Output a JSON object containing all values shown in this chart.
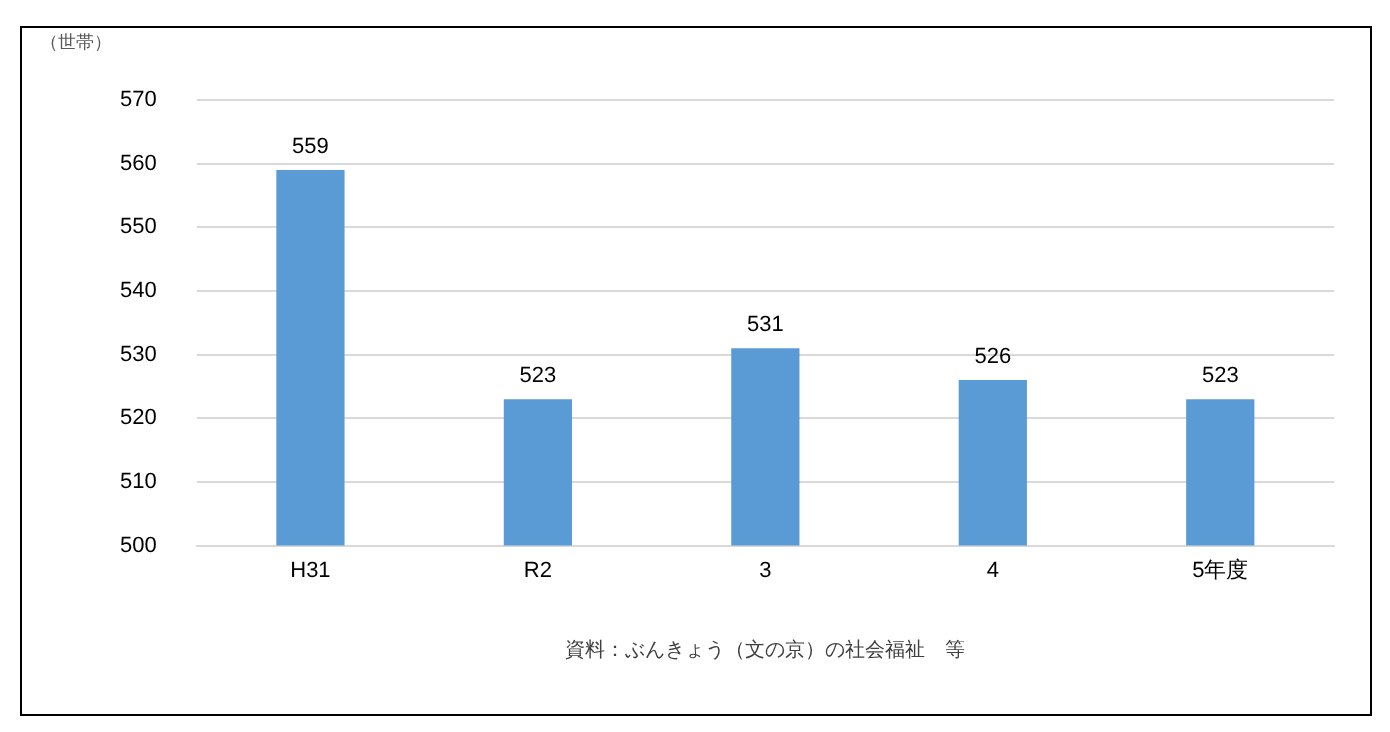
{
  "chart_data": {
    "type": "bar",
    "ylabel": "（世帯）",
    "categories": [
      "H31",
      "R2",
      "3",
      "4",
      "5年度"
    ],
    "values": [
      559,
      523,
      531,
      526,
      523
    ],
    "color": "#5b9bd5",
    "ylim": [
      500,
      570
    ],
    "yticks": [
      500,
      510,
      520,
      530,
      540,
      550,
      560,
      570
    ],
    "grid": "y",
    "data_labels": true,
    "annotations": [
      "資料：ぶんきょう（文の京）の社会福祉　等"
    ]
  }
}
